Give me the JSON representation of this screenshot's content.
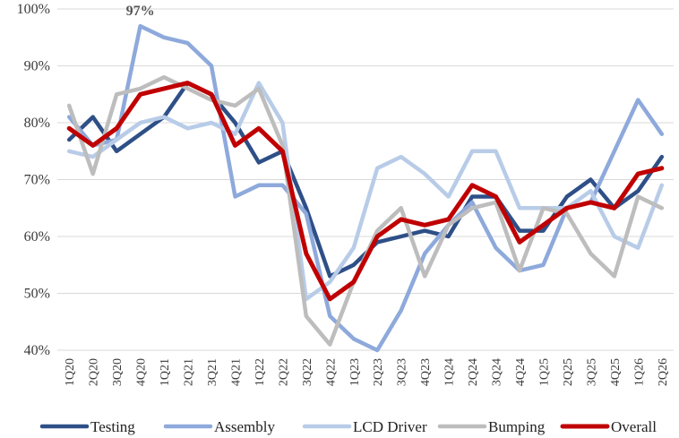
{
  "chart_data": {
    "type": "line",
    "title": "",
    "xlabel": "",
    "ylabel": "",
    "ylim": [
      40,
      100
    ],
    "y_ticks": [
      40,
      50,
      60,
      70,
      80,
      90,
      100
    ],
    "y_tick_labels": [
      "40%",
      "50%",
      "60%",
      "70%",
      "80%",
      "90%",
      "100%"
    ],
    "grid": "horizontal",
    "legend_position": "bottom",
    "categories": [
      "1Q20",
      "2Q20",
      "3Q20",
      "4Q20",
      "1Q21",
      "2Q21",
      "3Q21",
      "4Q21",
      "1Q22",
      "2Q22",
      "3Q22",
      "4Q22",
      "1Q23",
      "2Q23",
      "3Q23",
      "4Q23",
      "1Q24",
      "2Q24",
      "3Q24",
      "4Q24",
      "1Q25",
      "2Q25",
      "3Q25",
      "4Q25",
      "1Q26",
      "2Q26"
    ],
    "series": [
      {
        "name": "Testing",
        "color": "#2e4f87",
        "values": [
          77,
          81,
          75,
          78,
          81,
          87,
          85,
          80,
          73,
          75,
          65,
          53,
          55,
          59,
          60,
          61,
          60,
          67,
          67,
          61,
          61,
          67,
          70,
          65,
          68,
          74
        ]
      },
      {
        "name": "Assembly",
        "color": "#8ea9db",
        "values": [
          81,
          76,
          77,
          97,
          95,
          94,
          90,
          67,
          69,
          69,
          64,
          46,
          42,
          40,
          47,
          57,
          62,
          66,
          58,
          54,
          55,
          65,
          66,
          75,
          84,
          78
        ]
      },
      {
        "name": "LCD Driver",
        "color": "#b8cce8",
        "values": [
          75,
          74,
          77,
          80,
          81,
          79,
          80,
          78,
          87,
          80,
          49,
          52,
          58,
          72,
          74,
          71,
          67,
          75,
          75,
          65,
          65,
          65,
          68,
          60,
          58,
          69
        ]
      },
      {
        "name": "Bumping",
        "color": "#bdbdbd",
        "values": [
          83,
          71,
          85,
          86,
          88,
          86,
          84,
          83,
          86,
          76,
          46,
          41,
          52,
          61,
          65,
          53,
          62,
          65,
          66,
          54,
          65,
          64,
          57,
          53,
          67,
          65
        ]
      },
      {
        "name": "Overall",
        "color": "#c00000",
        "values": [
          79,
          76,
          79,
          85,
          86,
          87,
          85,
          76,
          79,
          75,
          57,
          49,
          52,
          60,
          63,
          62,
          63,
          69,
          67,
          59,
          62,
          65,
          66,
          65,
          71,
          72
        ]
      }
    ],
    "annotations": [
      {
        "text": "97%",
        "category": "4Q20",
        "series": "Assembly"
      }
    ]
  }
}
